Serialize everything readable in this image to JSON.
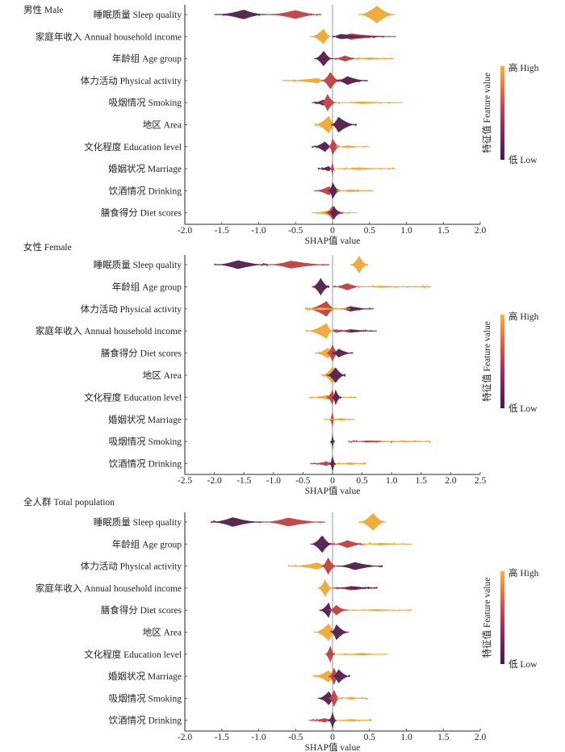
{
  "chart_data": [
    {
      "type": "scatter",
      "subtype": "shap-beeswarm",
      "title": "男性 Male",
      "xlabel": "SHAP值 value",
      "xlim": [
        -2.0,
        2.0
      ],
      "xticks": [
        "-2.0",
        "-1.5",
        "-1.0",
        "-0.5",
        "0",
        "0.5",
        "1.0",
        "1.5",
        "2.0"
      ],
      "xtick_values": [
        -2.0,
        -1.5,
        -1.0,
        -0.5,
        0,
        0.5,
        1.0,
        1.5,
        2.0
      ],
      "colorbar": {
        "label": "特征值 Feature value",
        "high": "高 High",
        "low": "低 Low"
      },
      "features": [
        {
          "name": "睡眠质量 Sleep quality",
          "segments": [
            {
              "level": "low",
              "min": -1.6,
              "max": -0.9,
              "center": -1.2,
              "width": 0.55
            },
            {
              "level": "mid",
              "min": -0.9,
              "max": -0.15,
              "center": -0.5,
              "width": 0.5
            },
            {
              "level": "high",
              "min": 0.35,
              "max": 0.85,
              "center": 0.6,
              "width": 1.0
            }
          ]
        },
        {
          "name": "家庭年收入 Annual household income",
          "segments": [
            {
              "level": "high",
              "min": -0.3,
              "max": -0.02,
              "center": -0.12,
              "width": 0.9
            },
            {
              "level": "mid",
              "min": 0.0,
              "max": 0.85,
              "center": 0.25,
              "width": 0.35
            },
            {
              "level": "low",
              "min": 0.0,
              "max": 0.7,
              "center": 0.1,
              "width": 0.3
            }
          ]
        },
        {
          "name": "年龄组 Age group",
          "segments": [
            {
              "level": "low",
              "min": -0.25,
              "max": 0.0,
              "center": -0.12,
              "width": 0.9
            },
            {
              "level": "mid",
              "min": 0.0,
              "max": 0.35,
              "center": 0.17,
              "width": 0.35
            },
            {
              "level": "high",
              "min": 0.3,
              "max": 0.83,
              "center": 0.5,
              "width": 0.15
            }
          ]
        },
        {
          "name": "体力活动  Physical activity",
          "segments": [
            {
              "level": "high",
              "min": -0.68,
              "max": -0.1,
              "center": -0.2,
              "width": 0.3
            },
            {
              "level": "mid",
              "min": -0.15,
              "max": 0.1,
              "center": -0.03,
              "width": 1.0
            },
            {
              "level": "low",
              "min": 0.05,
              "max": 0.48,
              "center": 0.2,
              "width": 0.5
            }
          ]
        },
        {
          "name": "吸烟情况 Smoking",
          "segments": [
            {
              "level": "low",
              "min": -0.28,
              "max": -0.05,
              "center": -0.12,
              "width": 0.35
            },
            {
              "level": "mid",
              "min": -0.15,
              "max": 0.05,
              "center": -0.07,
              "width": 1.0
            },
            {
              "level": "high",
              "min": 0.05,
              "max": 0.95,
              "center": 0.4,
              "width": 0.15
            }
          ]
        },
        {
          "name": "地区 Area",
          "segments": [
            {
              "level": "high",
              "min": -0.25,
              "max": 0.05,
              "center": -0.05,
              "width": 1.0
            },
            {
              "level": "low",
              "min": -0.02,
              "max": 0.32,
              "center": 0.08,
              "width": 0.9
            }
          ]
        },
        {
          "name": "文化程度 Education level",
          "segments": [
            {
              "level": "low",
              "min": -0.28,
              "max": 0.0,
              "center": -0.1,
              "width": 0.6
            },
            {
              "level": "mid",
              "min": -0.05,
              "max": 0.1,
              "center": 0.0,
              "width": 1.0
            },
            {
              "level": "high",
              "min": 0.05,
              "max": 0.5,
              "center": 0.2,
              "width": 0.15
            }
          ]
        },
        {
          "name": "婚姻状况 Marriage",
          "segments": [
            {
              "level": "low",
              "min": -0.2,
              "max": 0.0,
              "center": -0.05,
              "width": 0.3
            },
            {
              "level": "mid",
              "min": -0.03,
              "max": 0.02,
              "center": 0.0,
              "width": 1.0
            },
            {
              "level": "high",
              "min": 0.05,
              "max": 0.85,
              "center": 0.35,
              "width": 0.15
            }
          ]
        },
        {
          "name": "饮酒情况 Drinking",
          "segments": [
            {
              "level": "mid",
              "min": -0.25,
              "max": 0.1,
              "center": -0.05,
              "width": 0.5
            },
            {
              "level": "low",
              "min": -0.05,
              "max": 0.1,
              "center": 0.0,
              "width": 1.0
            },
            {
              "level": "high",
              "min": 0.05,
              "max": 0.55,
              "center": 0.25,
              "width": 0.15
            }
          ]
        },
        {
          "name": "膳食得分 Diet scores",
          "segments": [
            {
              "level": "high",
              "min": -0.28,
              "max": 0.33,
              "center": -0.05,
              "width": 0.3
            },
            {
              "level": "mid",
              "min": -0.1,
              "max": 0.15,
              "center": 0.0,
              "width": 0.8
            },
            {
              "level": "low",
              "min": -0.05,
              "max": 0.1,
              "center": 0.02,
              "width": 0.8
            }
          ]
        }
      ]
    },
    {
      "type": "scatter",
      "subtype": "shap-beeswarm",
      "title": "女性 Female",
      "xlabel": "SHAP值 value",
      "xlim": [
        -2.5,
        2.5
      ],
      "xticks": [
        "-2.5",
        "-2.0",
        "-1.5",
        "-1.0",
        "-0.5",
        "0",
        "0.5",
        "1.0",
        "1.5",
        "2.0",
        "2.5"
      ],
      "xtick_values": [
        -2.5,
        -2.0,
        -1.5,
        -1.0,
        -0.5,
        0,
        0.5,
        1.0,
        1.5,
        2.0,
        2.5
      ],
      "colorbar": {
        "label": "特征值 Feature value",
        "high": "高 High",
        "low": "低 Low"
      },
      "features": [
        {
          "name": "睡眠质量 Sleep quality",
          "segments": [
            {
              "level": "low",
              "min": -2.0,
              "max": -1.1,
              "center": -1.6,
              "width": 0.5
            },
            {
              "level": "mid",
              "min": -1.1,
              "max": -0.05,
              "center": -0.7,
              "width": 0.45
            },
            {
              "level": "high",
              "min": 0.3,
              "max": 0.6,
              "center": 0.45,
              "width": 1.0
            }
          ]
        },
        {
          "name": "年龄组 Age group",
          "segments": [
            {
              "level": "low",
              "min": -0.35,
              "max": -0.05,
              "center": -0.2,
              "width": 1.0
            },
            {
              "level": "mid",
              "min": 0.0,
              "max": 0.5,
              "center": 0.25,
              "width": 0.4
            },
            {
              "level": "high",
              "min": 0.4,
              "max": 1.67,
              "center": 0.8,
              "width": 0.12
            }
          ]
        },
        {
          "name": "体力活动  Physical activity",
          "segments": [
            {
              "level": "mid",
              "min": -0.45,
              "max": 0.05,
              "center": -0.1,
              "width": 0.9
            },
            {
              "level": "low",
              "min": 0.1,
              "max": 0.7,
              "center": 0.3,
              "width": 0.3
            },
            {
              "level": "high",
              "min": -0.45,
              "max": 0.3,
              "center": -0.2,
              "width": 0.15
            }
          ]
        },
        {
          "name": "家庭年收入 Annual household income",
          "segments": [
            {
              "level": "high",
              "min": -0.45,
              "max": 0.0,
              "center": -0.1,
              "width": 0.9
            },
            {
              "level": "low",
              "min": 0.05,
              "max": 0.75,
              "center": 0.3,
              "width": 0.2
            },
            {
              "level": "mid",
              "min": 0.0,
              "max": 0.3,
              "center": 0.05,
              "width": 0.2
            }
          ]
        },
        {
          "name": "膳食得分 Diet scores",
          "segments": [
            {
              "level": "high",
              "min": -0.3,
              "max": 0.1,
              "center": -0.08,
              "width": 0.6
            },
            {
              "level": "mid",
              "min": -0.1,
              "max": 0.1,
              "center": 0.0,
              "width": 1.0
            },
            {
              "level": "low",
              "min": 0.0,
              "max": 0.35,
              "center": 0.1,
              "width": 0.5
            }
          ]
        },
        {
          "name": "地区 Area",
          "segments": [
            {
              "level": "high",
              "min": -0.18,
              "max": 0.2,
              "center": 0.0,
              "width": 1.0
            },
            {
              "level": "low",
              "min": -0.1,
              "max": 0.22,
              "center": 0.05,
              "width": 0.9
            }
          ]
        },
        {
          "name": "文化程度 Education level",
          "segments": [
            {
              "level": "high",
              "min": -0.4,
              "max": 0.4,
              "center": -0.1,
              "width": 0.25
            },
            {
              "level": "mid",
              "min": -0.1,
              "max": 0.05,
              "center": 0.0,
              "width": 0.9
            },
            {
              "level": "low",
              "min": 0.0,
              "max": 0.15,
              "center": 0.05,
              "width": 0.9
            }
          ]
        },
        {
          "name": "婚姻状况 Marriage",
          "segments": [
            {
              "level": "mid",
              "min": -0.05,
              "max": 0.03,
              "center": 0.0,
              "width": 1.0
            },
            {
              "level": "high",
              "min": -0.15,
              "max": 0.38,
              "center": 0.15,
              "width": 0.15
            }
          ]
        },
        {
          "name": "吸烟情况 Smoking",
          "segments": [
            {
              "level": "low",
              "min": -0.03,
              "max": 0.03,
              "center": 0.0,
              "width": 1.0
            },
            {
              "level": "mid",
              "min": 0.27,
              "max": 1.5,
              "center": 0.6,
              "width": 0.12
            },
            {
              "level": "high",
              "min": 0.8,
              "max": 1.67,
              "center": 1.2,
              "width": 0.1
            }
          ]
        },
        {
          "name": "饮酒情况 Drinking",
          "segments": [
            {
              "level": "mid",
              "min": -0.38,
              "max": 0.05,
              "center": -0.1,
              "width": 0.25
            },
            {
              "level": "low",
              "min": -0.05,
              "max": 0.05,
              "center": 0.0,
              "width": 1.0
            },
            {
              "level": "high",
              "min": 0.05,
              "max": 0.57,
              "center": 0.3,
              "width": 0.15
            }
          ]
        }
      ]
    },
    {
      "type": "scatter",
      "subtype": "shap-beeswarm",
      "title": "全人群 Total population",
      "xlabel": "SHAP值 value",
      "xlim": [
        -2.0,
        2.0
      ],
      "xticks": [
        "-2.0",
        "-1.5",
        "-1.0",
        "-0.5",
        "0",
        "0.5",
        "1.0",
        "1.5",
        "2.0"
      ],
      "xtick_values": [
        -2.0,
        -1.5,
        -1.0,
        -0.5,
        0,
        0.5,
        1.0,
        1.5,
        2.0
      ],
      "colorbar": {
        "label": "特征值 Feature value",
        "high": "高 High",
        "low": "低 Low"
      },
      "features": [
        {
          "name": "睡眠质量 Sleep quality",
          "segments": [
            {
              "level": "low",
              "min": -1.65,
              "max": -0.95,
              "center": -1.35,
              "width": 0.55
            },
            {
              "level": "mid",
              "min": -0.95,
              "max": -0.1,
              "center": -0.6,
              "width": 0.5
            },
            {
              "level": "high",
              "min": 0.35,
              "max": 0.72,
              "center": 0.55,
              "width": 1.0
            }
          ]
        },
        {
          "name": "年龄组 Age group",
          "segments": [
            {
              "level": "low",
              "min": -0.3,
              "max": 0.0,
              "center": -0.14,
              "width": 1.0
            },
            {
              "level": "mid",
              "min": 0.0,
              "max": 0.45,
              "center": 0.2,
              "width": 0.45
            },
            {
              "level": "high",
              "min": 0.4,
              "max": 1.07,
              "center": 0.65,
              "width": 0.15
            }
          ]
        },
        {
          "name": "体力活动  Physical activity",
          "segments": [
            {
              "level": "high",
              "min": -0.6,
              "max": -0.05,
              "center": -0.2,
              "width": 0.4
            },
            {
              "level": "mid",
              "min": -0.15,
              "max": 0.05,
              "center": -0.06,
              "width": 1.0
            },
            {
              "level": "low",
              "min": 0.05,
              "max": 0.68,
              "center": 0.3,
              "width": 0.45
            }
          ]
        },
        {
          "name": "家庭年收入 Annual household income",
          "segments": [
            {
              "level": "high",
              "min": -0.2,
              "max": 0.0,
              "center": -0.1,
              "width": 1.0
            },
            {
              "level": "mid",
              "min": 0.0,
              "max": 0.6,
              "center": 0.25,
              "width": 0.25
            },
            {
              "level": "low",
              "min": 0.05,
              "max": 0.6,
              "center": 0.3,
              "width": 0.2
            }
          ]
        },
        {
          "name": "膳食得分 Diet scores",
          "segments": [
            {
              "level": "low",
              "min": -0.18,
              "max": 0.0,
              "center": -0.05,
              "width": 0.9
            },
            {
              "level": "mid",
              "min": -0.05,
              "max": 0.2,
              "center": 0.05,
              "width": 0.6
            },
            {
              "level": "high",
              "min": 0.2,
              "max": 1.07,
              "center": 0.6,
              "width": 0.12
            }
          ]
        },
        {
          "name": "地区 Area",
          "segments": [
            {
              "level": "high",
              "min": -0.25,
              "max": 0.05,
              "center": -0.05,
              "width": 1.0
            },
            {
              "level": "low",
              "min": -0.02,
              "max": 0.22,
              "center": 0.05,
              "width": 0.9
            }
          ]
        },
        {
          "name": "文化程度 Education level",
          "segments": [
            {
              "level": "mid",
              "min": -0.1,
              "max": 0.03,
              "center": -0.03,
              "width": 1.0
            },
            {
              "level": "high",
              "min": 0.05,
              "max": 0.75,
              "center": 0.4,
              "width": 0.15
            }
          ]
        },
        {
          "name": "婚姻状况 Marriage",
          "segments": [
            {
              "level": "high",
              "min": -0.27,
              "max": 0.05,
              "center": -0.05,
              "width": 0.7
            },
            {
              "level": "mid",
              "min": -0.05,
              "max": 0.1,
              "center": 0.02,
              "width": 1.0
            },
            {
              "level": "low",
              "min": 0.0,
              "max": 0.24,
              "center": 0.08,
              "width": 0.8
            }
          ]
        },
        {
          "name": "吸烟情况 Smoking",
          "segments": [
            {
              "level": "low",
              "min": -0.2,
              "max": 0.05,
              "center": -0.05,
              "width": 0.8
            },
            {
              "level": "mid",
              "min": -0.05,
              "max": 0.1,
              "center": 0.02,
              "width": 1.0
            },
            {
              "level": "high",
              "min": 0.05,
              "max": 0.48,
              "center": 0.25,
              "width": 0.15
            }
          ]
        },
        {
          "name": "饮酒情况 Drinking",
          "segments": [
            {
              "level": "mid",
              "min": -0.32,
              "max": 0.0,
              "center": -0.1,
              "width": 0.25
            },
            {
              "level": "low",
              "min": -0.05,
              "max": 0.05,
              "center": 0.0,
              "width": 1.0
            },
            {
              "level": "high",
              "min": 0.05,
              "max": 0.53,
              "center": 0.25,
              "width": 0.15
            }
          ]
        }
      ]
    }
  ],
  "colors": {
    "low": "#5a2a55",
    "mid": "#c04a4a",
    "high": "#eead3e",
    "axis": "#555555",
    "zero_line": "#9a9a9a"
  }
}
